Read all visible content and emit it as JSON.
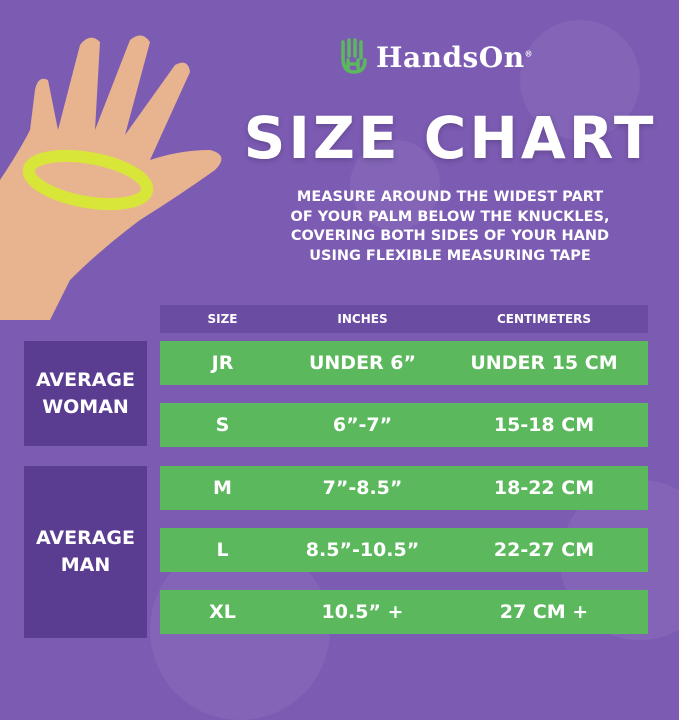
{
  "brand": {
    "name": "HandsOn",
    "registered": "®",
    "logo_color": "#5cb85c"
  },
  "title": "SIZE CHART",
  "instructions": [
    "MEASURE AROUND THE WIDEST PART",
    "OF YOUR PALM BELOW THE KNUCKLES,",
    "COVERING BOTH SIDES OF YOUR HAND",
    "USING FLEXIBLE MEASURING TAPE"
  ],
  "table": {
    "headers": {
      "size": "SIZE",
      "inches": "INCHES",
      "cm": "CENTIMETERS"
    },
    "groups": [
      {
        "label": "AVERAGE WOMAN",
        "rows": [
          {
            "size": "JR",
            "inches": "UNDER 6”",
            "cm": "UNDER 15 CM"
          },
          {
            "size": "S",
            "inches": "6”-7”",
            "cm": "15-18 CM"
          }
        ]
      },
      {
        "label": "AVERAGE MAN",
        "rows": [
          {
            "size": "M",
            "inches": "7”-8.5”",
            "cm": "18-22 CM"
          },
          {
            "size": "L",
            "inches": "8.5”-10.5”",
            "cm": "22-27 CM"
          },
          {
            "size": "XL",
            "inches": "10.5” +",
            "cm": "27 CM +"
          }
        ]
      }
    ]
  },
  "colors": {
    "background": "#7c5bb3",
    "row": "#5cb85c",
    "group": "#5a3d91",
    "header": "#6b4ca3"
  }
}
